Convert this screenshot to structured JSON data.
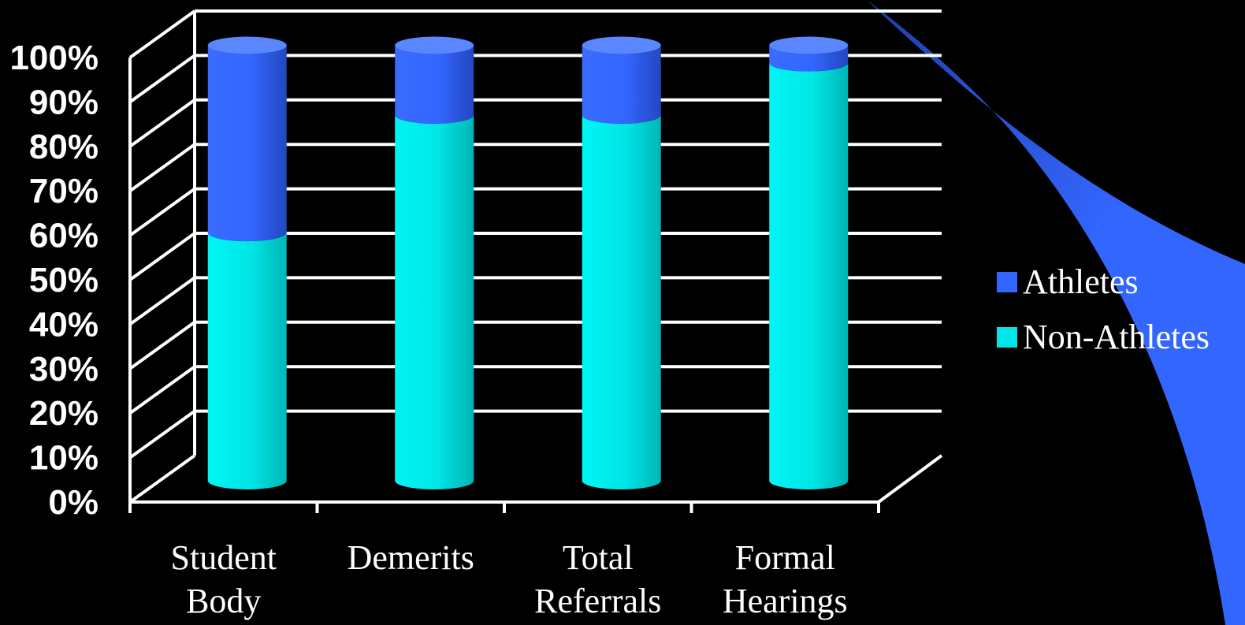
{
  "chart_data": {
    "type": "bar",
    "stacked": true,
    "percent": true,
    "style": "3d-cylinder",
    "title": "",
    "xlabel": "",
    "ylabel": "",
    "ylim": [
      0,
      100
    ],
    "yticks": [
      "0%",
      "10%",
      "20%",
      "30%",
      "40%",
      "50%",
      "60%",
      "70%",
      "80%",
      "90%",
      "100%"
    ],
    "categories": [
      [
        "Student",
        "Body"
      ],
      [
        "Demerits"
      ],
      [
        "Total",
        "Referrals"
      ],
      [
        "Formal",
        "Hearings"
      ]
    ],
    "series": [
      {
        "name": "Non-Athletes",
        "color": "#00e5e5",
        "values": [
          57,
          84,
          84,
          96
        ]
      },
      {
        "name": "Athletes",
        "color": "#3366ff",
        "values": [
          43,
          16,
          16,
          4
        ]
      }
    ],
    "legend": {
      "position": "right",
      "items": [
        "Athletes",
        "Non-Athletes"
      ]
    },
    "grid": true
  },
  "colors": {
    "background": "#000000",
    "gridline": "#ffffff",
    "decor_swoosh": "#3366ff"
  }
}
